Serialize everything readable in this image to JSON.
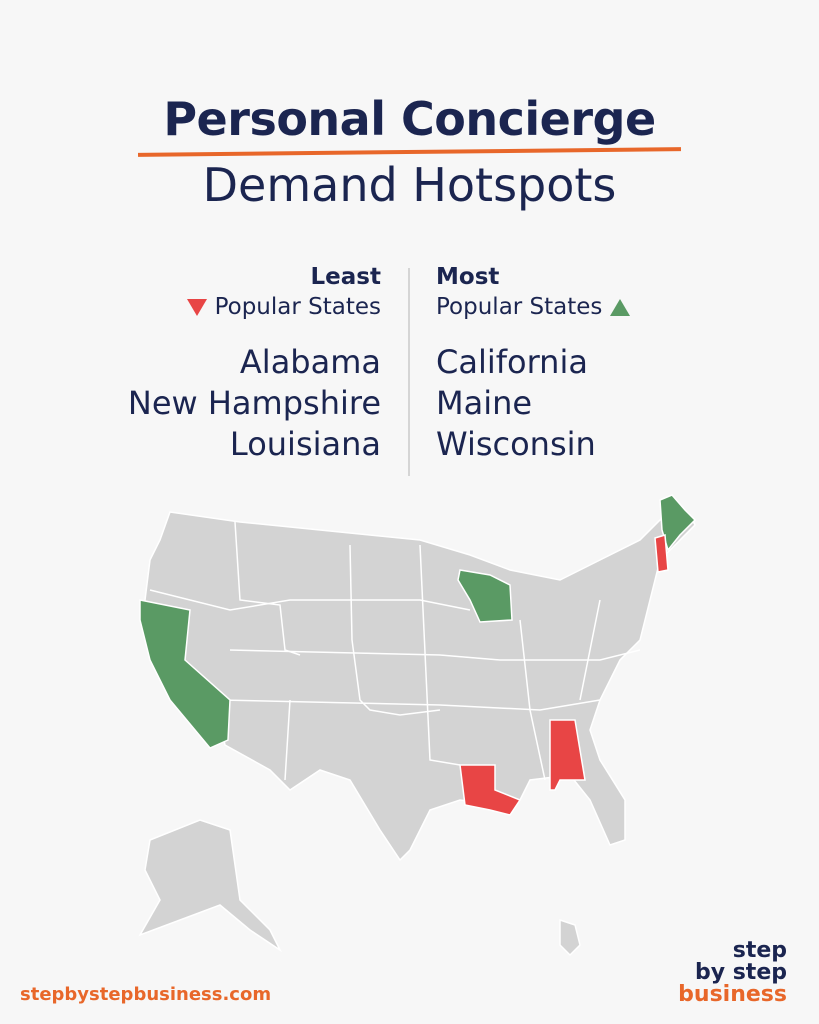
{
  "title": {
    "line1": "Personal Concierge",
    "line2": "Demand Hotspots"
  },
  "least": {
    "heading": "Least",
    "subheading": "Popular States",
    "states": [
      "Alabama",
      "New Hampshire",
      "Louisiana"
    ],
    "color": "#e84545",
    "icon": "triangle-down-icon"
  },
  "most": {
    "heading": "Most",
    "subheading": "Popular States",
    "states": [
      "California",
      "Maine",
      "Wisconsin"
    ],
    "color": "#5a9a64",
    "icon": "triangle-up-icon"
  },
  "map": {
    "base_color": "#d3d3d3",
    "highlight_least": [
      "Alabama",
      "New Hampshire",
      "Louisiana"
    ],
    "highlight_most": [
      "California",
      "Maine",
      "Wisconsin"
    ]
  },
  "footer": {
    "url": "stepbystepbusiness.com",
    "logo": [
      "step",
      "by step",
      "business"
    ]
  }
}
